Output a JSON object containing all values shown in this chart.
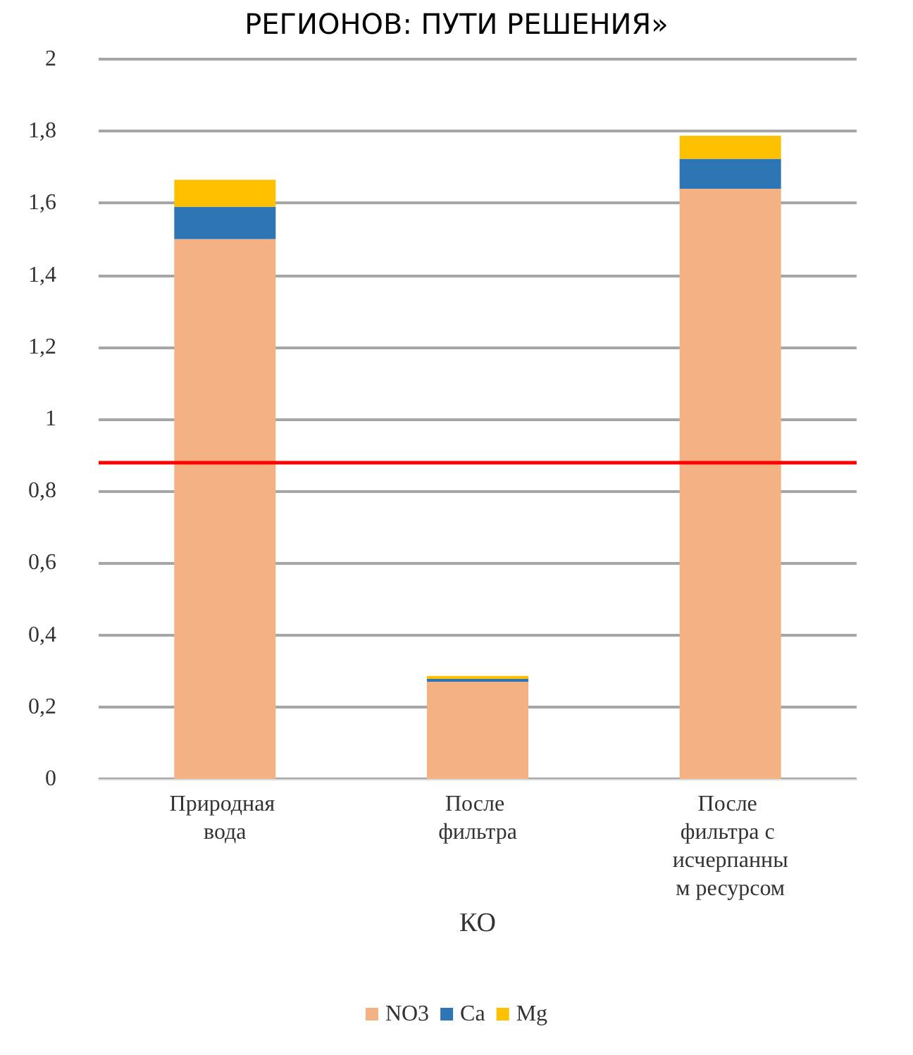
{
  "chart_data": {
    "type": "bar",
    "title": "РЕГИОНОВ: ПУТИ РЕШЕНИЯ»",
    "xlabel": "КО",
    "stacked": true,
    "categories": [
      "Природная вода",
      "После фильтра",
      "После фильтра с исчерпанным ресурсом"
    ],
    "series": [
      {
        "name": "NO3",
        "color": "#f4b183",
        "values": [
          1.5,
          0.27,
          1.64
        ]
      },
      {
        "name": "Ca",
        "color": "#2e75b6",
        "values": [
          0.09,
          0.008,
          0.083
        ]
      },
      {
        "name": "Mg",
        "color": "#ffc000",
        "values": [
          0.075,
          0.008,
          0.064
        ]
      }
    ],
    "ylim": [
      0,
      2
    ],
    "yticks": [
      0,
      {
        "value": 0.2,
        "label": "0,2"
      },
      {
        "value": 0.4,
        "label": "0,4"
      },
      {
        "value": 0.6,
        "label": "0,6"
      },
      {
        "value": 0.8,
        "label": "0,8"
      },
      1,
      {
        "value": 1.2,
        "label": "1,2"
      },
      {
        "value": 1.4,
        "label": "1,4"
      },
      {
        "value": 1.6,
        "label": "1,6"
      },
      {
        "value": 1.8,
        "label": "1,8"
      },
      2
    ],
    "grid": "y",
    "legend": "bottom",
    "ref_lines": [
      {
        "axis": "y",
        "value": 0.88,
        "color": "#ff0000"
      }
    ]
  }
}
